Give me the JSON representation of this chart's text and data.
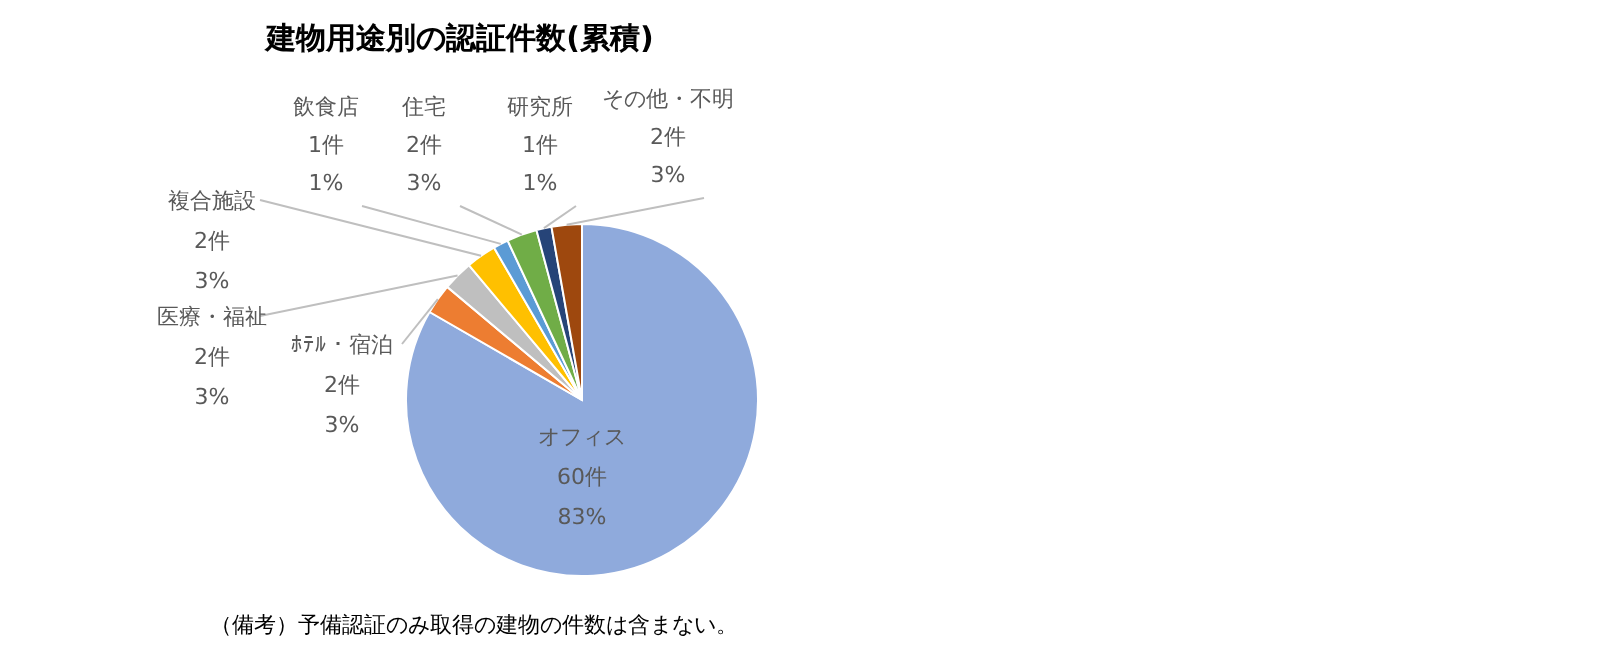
{
  "chart_data": {
    "type": "pie",
    "title": "建物用途別の認証件数(累積)",
    "categories": [
      "オフィス",
      "ﾎﾃﾙ・宿泊",
      "医療・福祉",
      "複合施設",
      "飲食店",
      "住宅",
      "研究所",
      "その他・不明"
    ],
    "values": [
      60,
      2,
      2,
      2,
      1,
      2,
      1,
      2
    ],
    "value_labels": [
      "60件\n83%",
      "2件\n3%",
      "2件\n3%",
      "2件\n3%",
      "1件\n1%",
      "2件\n3%",
      "1件\n1%",
      "2件\n3%"
    ],
    "colors": [
      "#8faadc",
      "#ed7d31",
      "#bfbfbf",
      "#ffc000",
      "#5b9bd5",
      "#70ad47",
      "#264478",
      "#9e480e"
    ],
    "annotations": [
      "（備考）予備認証のみ取得の建物の件数は含まない。"
    ]
  }
}
